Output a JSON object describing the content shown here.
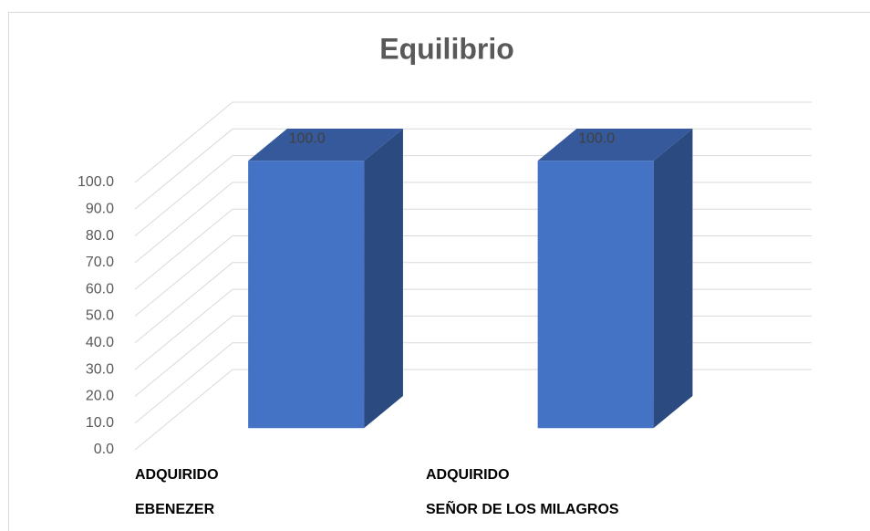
{
  "chart_data": {
    "type": "bar3d",
    "title": "Equilibrio",
    "categories": [
      "ADQUIRIDO\nEBENEZER",
      "ADQUIRIDO\nSEÑOR DE LOS MILAGROS"
    ],
    "values": [
      100,
      100
    ],
    "value_labels": [
      "100.0",
      "100.0"
    ],
    "color": "#4472c4",
    "ylim": [
      0,
      100
    ],
    "yticks": [
      {
        "value": 0,
        "label": "0.0"
      },
      {
        "value": 10,
        "label": "10.0"
      },
      {
        "value": 20,
        "label": "20.0"
      },
      {
        "value": 30,
        "label": "30.0"
      },
      {
        "value": 40,
        "label": "40.0"
      },
      {
        "value": 50,
        "label": "50.0"
      },
      {
        "value": 60,
        "label": "60.0"
      },
      {
        "value": 70,
        "label": "70.0"
      },
      {
        "value": 80,
        "label": "80.0"
      },
      {
        "value": 90,
        "label": "90.0"
      },
      {
        "value": 100,
        "label": "100.0"
      }
    ],
    "grid": true
  }
}
